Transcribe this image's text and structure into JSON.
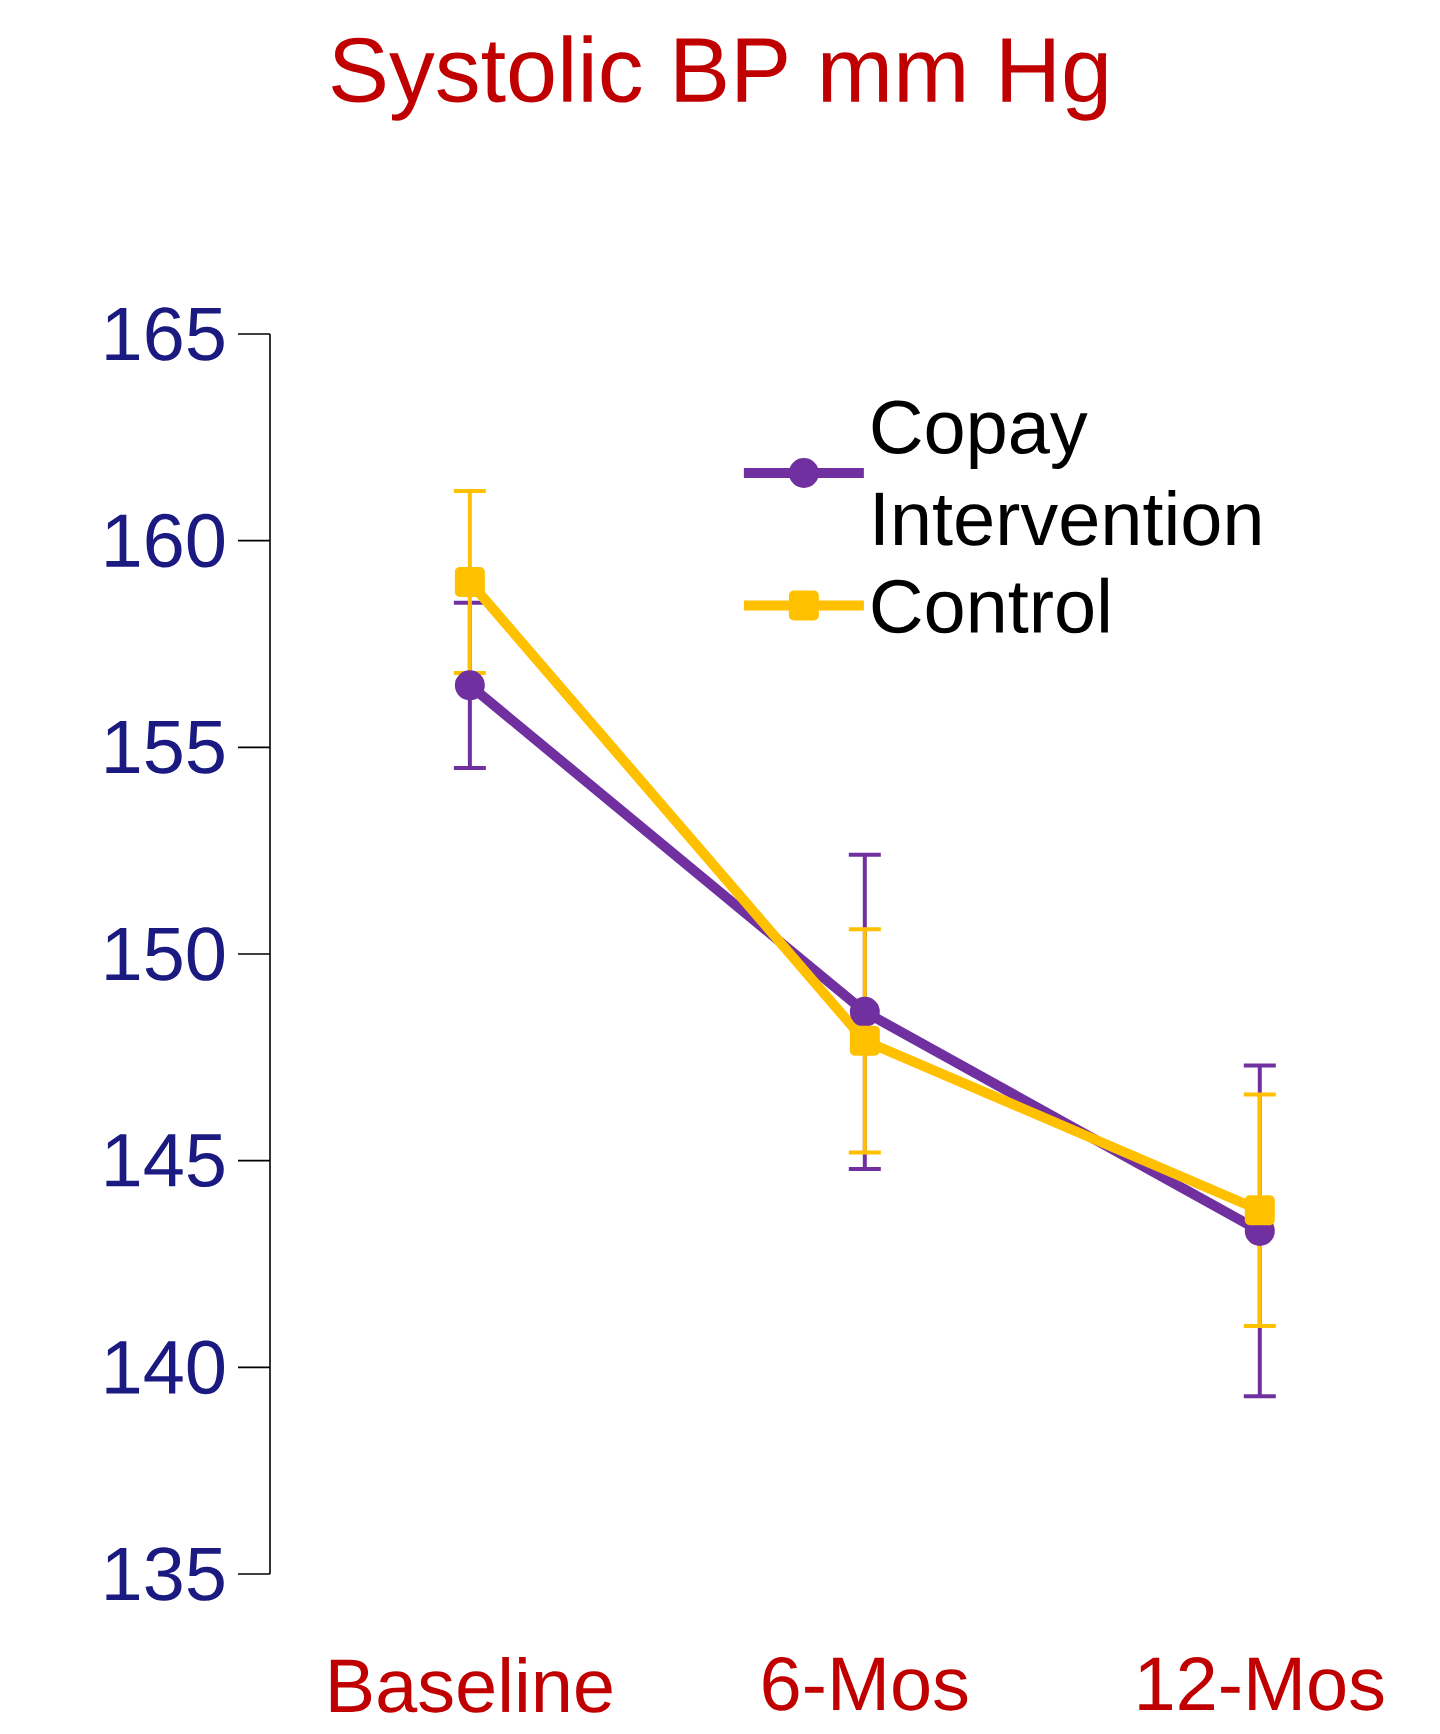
{
  "chart_data": {
    "type": "line",
    "title": "Systolic BP mm Hg",
    "categories": [
      "Baseline",
      "6-Mos",
      "12-Mos"
    ],
    "series": [
      {
        "name": "Copay Intervention",
        "color": "#7030a0",
        "marker": "circle",
        "values": [
          156.5,
          148.6,
          143.3
        ],
        "errors": [
          2,
          3.8,
          4
        ]
      },
      {
        "name": "Control",
        "color": "#ffc000",
        "marker": "square",
        "values": [
          159,
          147.9,
          143.8
        ],
        "errors": [
          2.2,
          2.7,
          2.8
        ]
      }
    ],
    "ylim": [
      135,
      165
    ],
    "yticks": [
      135,
      140,
      145,
      150,
      155,
      160,
      165
    ],
    "grid": false,
    "legend": "top right"
  }
}
